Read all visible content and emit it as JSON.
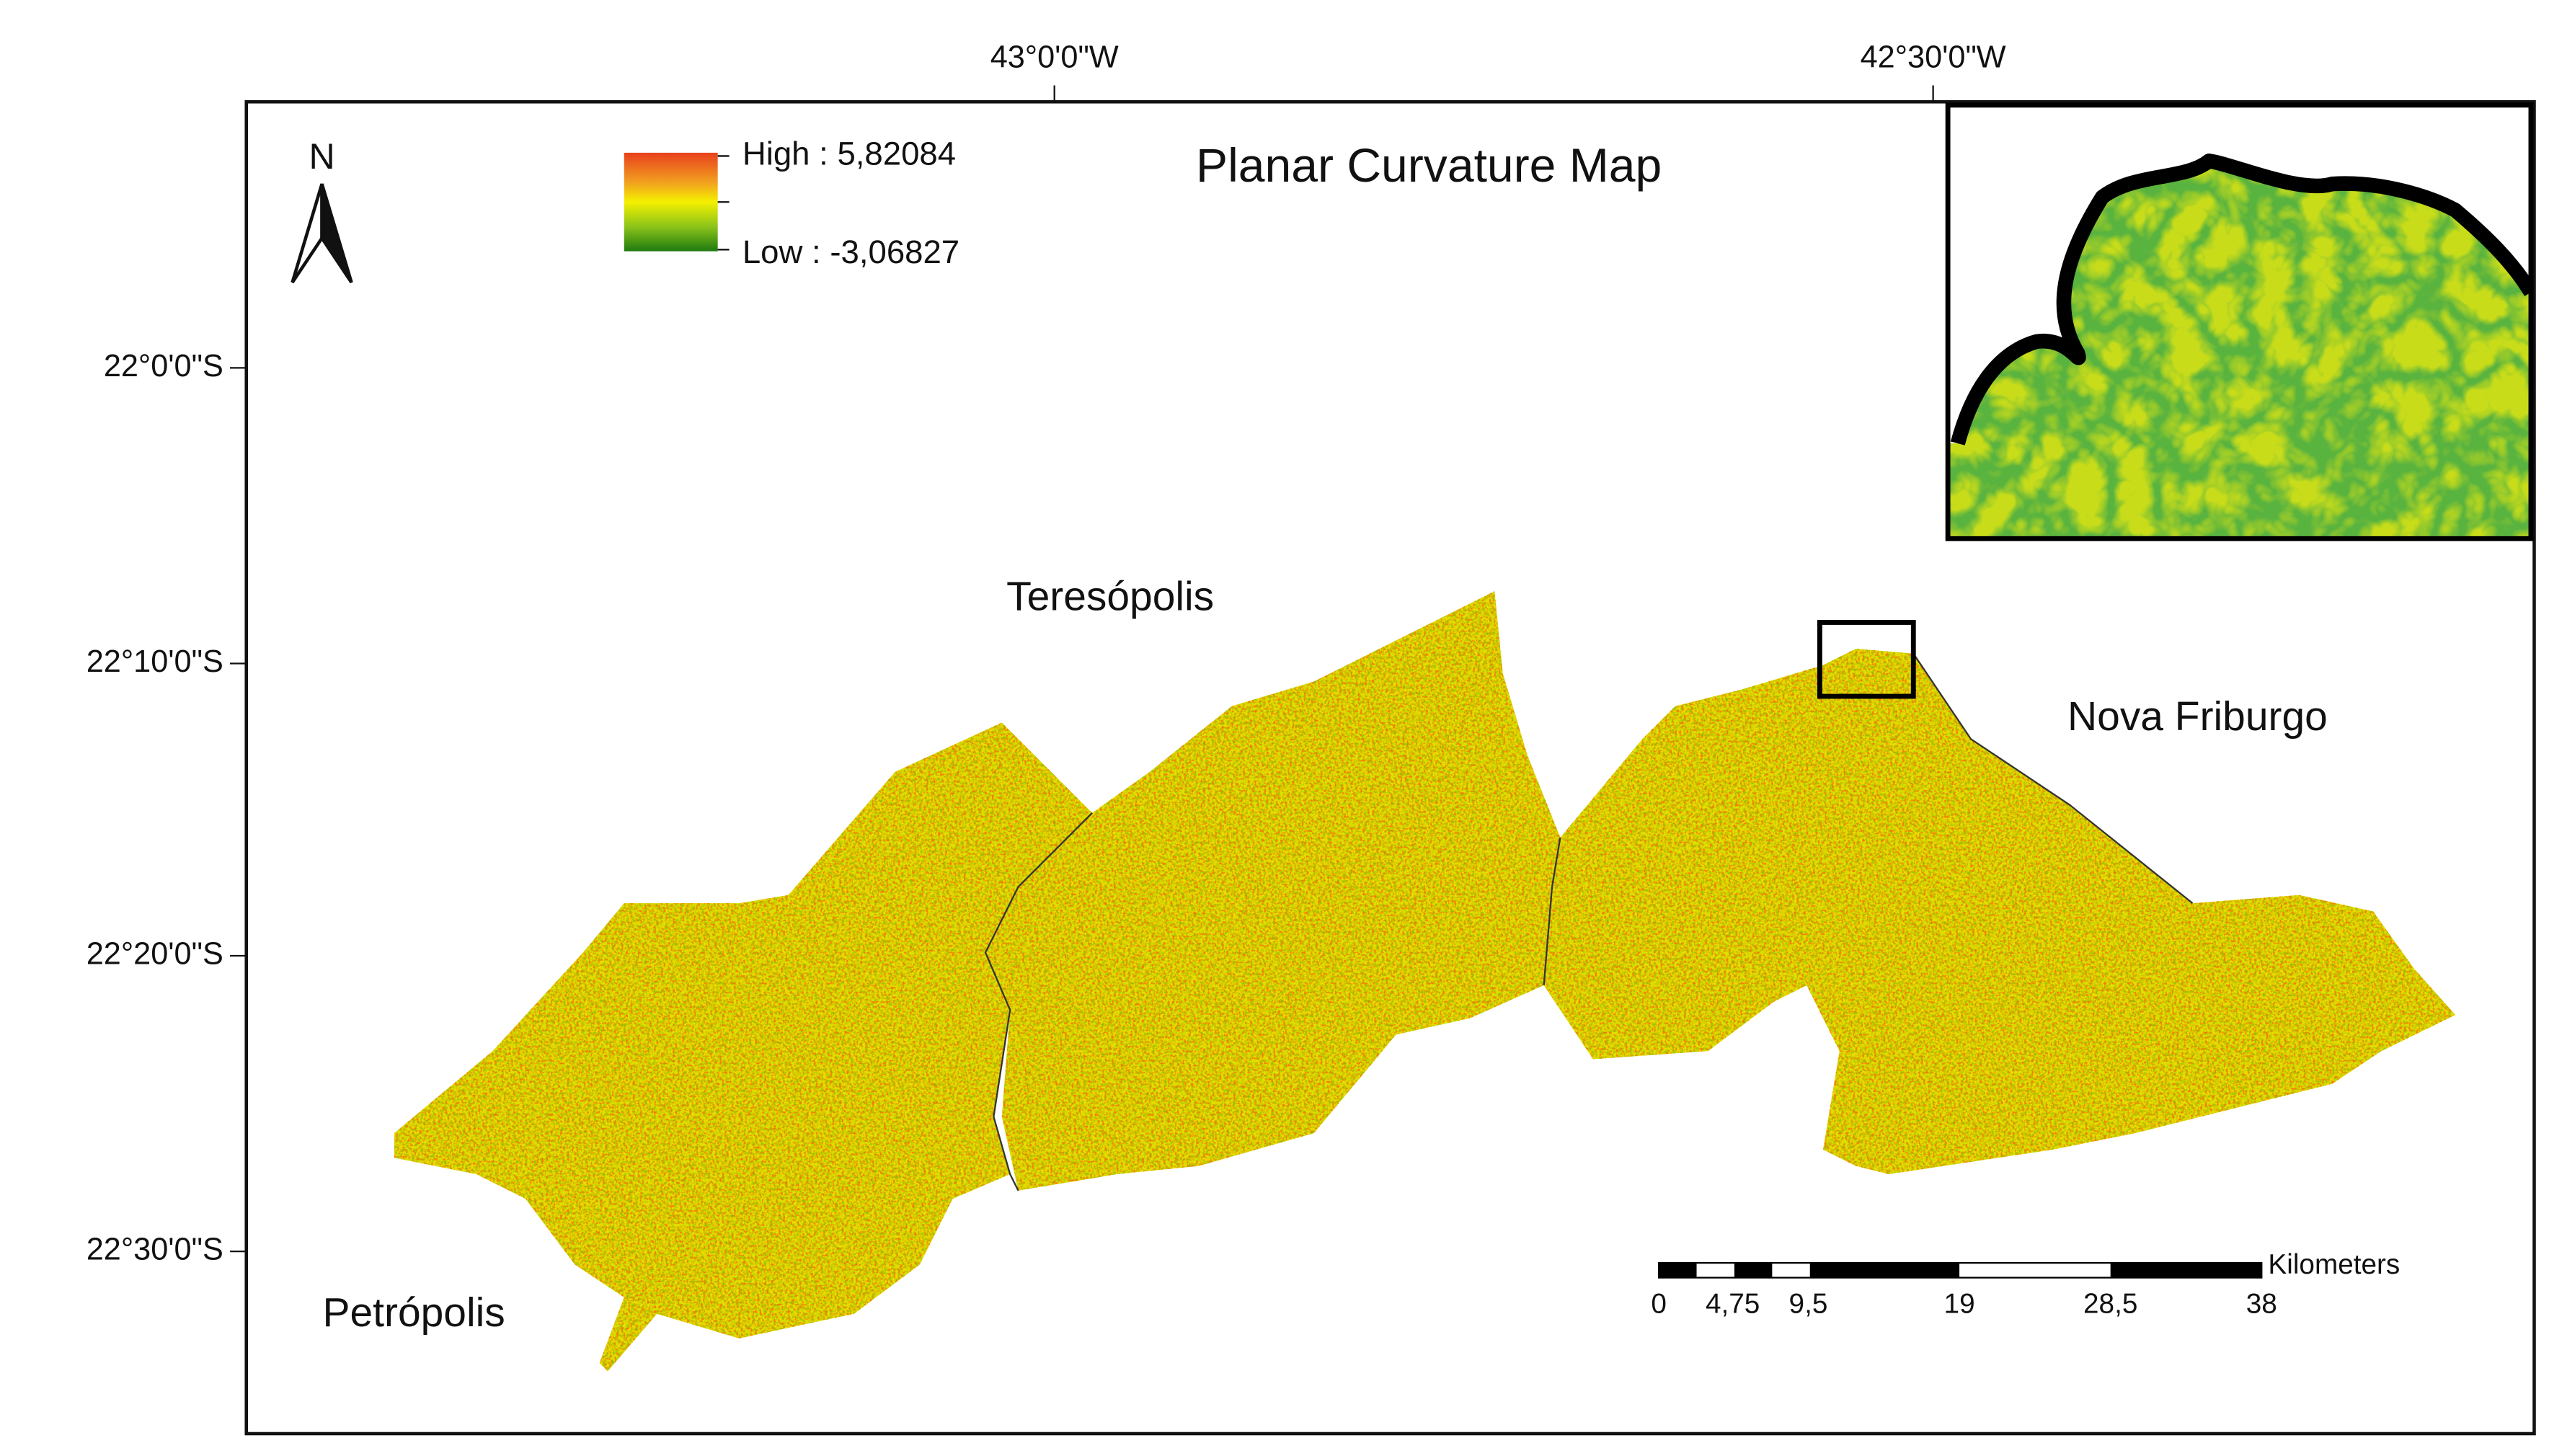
{
  "title": "Planar Curvature Map",
  "north": "N",
  "legend": {
    "high": "High : 5,82084",
    "low": "Low : -3,06827"
  },
  "longitude_labels": [
    "43°0'0\"W",
    "42°30'0\"W"
  ],
  "latitude_labels": [
    "22°0'0\"S",
    "22°10'0\"S",
    "22°20'0\"S",
    "22°30'0\"S"
  ],
  "places": [
    "Teresópolis",
    "Nova Friburgo",
    "Petrópolis"
  ],
  "scale_bar": {
    "unit": "Kilometers",
    "labels": [
      "0",
      "4,75",
      "9,5",
      "19",
      "28,5",
      "38"
    ]
  }
}
